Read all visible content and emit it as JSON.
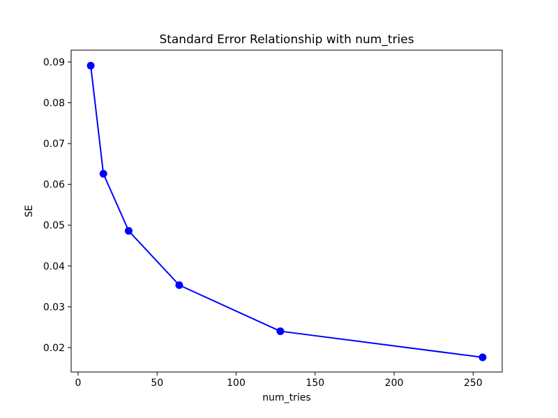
{
  "chart_data": {
    "type": "line",
    "title": "Standard Error Relationship with num_tries",
    "xlabel": "num_tries",
    "ylabel": "SE",
    "x": [
      8,
      16,
      32,
      64,
      128,
      256
    ],
    "y": [
      0.0891,
      0.0626,
      0.0486,
      0.0353,
      0.024,
      0.0176
    ],
    "xtick_labels": [
      "0",
      "50",
      "100",
      "150",
      "200",
      "250"
    ],
    "xtick_values": [
      0,
      50,
      100,
      150,
      200,
      250
    ],
    "ytick_labels": [
      "0.02",
      "0.03",
      "0.04",
      "0.05",
      "0.06",
      "0.07",
      "0.08",
      "0.09"
    ],
    "ytick_values": [
      0.02,
      0.03,
      0.04,
      0.05,
      0.06,
      0.07,
      0.08,
      0.09
    ],
    "xlim": [
      -4.4,
      268.4
    ],
    "ylim": [
      0.014,
      0.0929
    ],
    "grid": false,
    "legend": null,
    "line_color": "#0000ff",
    "marker": "circle",
    "spine_color": "#000000"
  }
}
